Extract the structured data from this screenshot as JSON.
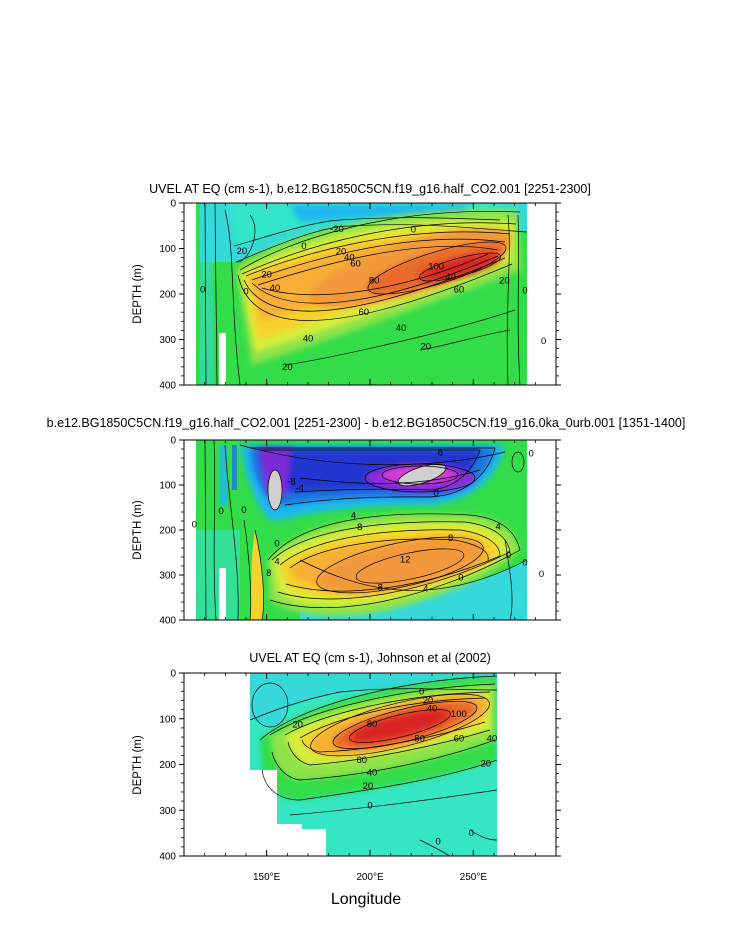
{
  "chart_data": [
    {
      "type": "contour",
      "title": "UVEL AT EQ (cm s-1), b.e12.BG1850C5CN.f19_g16.half_CO2.001 [2251-2300]",
      "ylabel": "DEPTH (m)",
      "yticks": [
        "0",
        "100",
        "200",
        "300",
        "400"
      ],
      "ylim": [
        400,
        0
      ],
      "xlim": [
        110,
        290
      ],
      "core": {
        "lon": 227,
        "depth": 140,
        "max": 100
      },
      "contour_labels": [
        {
          "text": "-20",
          "lon": 184,
          "depth": 57
        },
        {
          "text": "0",
          "lon": 168,
          "depth": 95
        },
        {
          "text": "20",
          "lon": 138,
          "depth": 105
        },
        {
          "text": "20",
          "lon": 186,
          "depth": 107
        },
        {
          "text": "40",
          "lon": 190,
          "depth": 120
        },
        {
          "text": "60",
          "lon": 193,
          "depth": 133
        },
        {
          "text": "80",
          "lon": 202,
          "depth": 170
        },
        {
          "text": "100",
          "lon": 232,
          "depth": 140
        },
        {
          "text": "20",
          "lon": 150,
          "depth": 157
        },
        {
          "text": "40",
          "lon": 154,
          "depth": 187
        },
        {
          "text": "60",
          "lon": 197,
          "depth": 240
        },
        {
          "text": "40",
          "lon": 215,
          "depth": 275
        },
        {
          "text": "40",
          "lon": 170,
          "depth": 298
        },
        {
          "text": "20",
          "lon": 227,
          "depth": 315
        },
        {
          "text": "20",
          "lon": 160,
          "depth": 360
        },
        {
          "text": "40",
          "lon": 239,
          "depth": 163
        },
        {
          "text": "60",
          "lon": 243,
          "depth": 190
        },
        {
          "text": "20",
          "lon": 265,
          "depth": 170
        },
        {
          "text": "0",
          "lon": 221,
          "depth": 58
        },
        {
          "text": "0",
          "lon": 119,
          "depth": 190
        },
        {
          "text": "0",
          "lon": 140,
          "depth": 195
        },
        {
          "text": "0",
          "lon": 275,
          "depth": 192
        },
        {
          "text": "0",
          "lon": 284,
          "depth": 303
        }
      ]
    },
    {
      "type": "contour",
      "title": "b.e12.BG1850C5CN.f19_g16.half_CO2.001 [2251-2300] - b.e12.BG1850C5CN.f19_g16.0ka_0urb.001 [1351-1400]",
      "ylabel": "DEPTH (m)",
      "yticks": [
        "0",
        "100",
        "200",
        "300",
        "400"
      ],
      "ylim": [
        400,
        0
      ],
      "xlim": [
        110,
        290
      ],
      "contour_labels": [
        {
          "text": "8",
          "lon": 234,
          "depth": 28
        },
        {
          "text": "-4",
          "lon": 166,
          "depth": 107
        },
        {
          "text": "-8",
          "lon": 162,
          "depth": 92
        },
        {
          "text": "4",
          "lon": 192,
          "depth": 168
        },
        {
          "text": "8",
          "lon": 195,
          "depth": 193
        },
        {
          "text": "8",
          "lon": 239,
          "depth": 218
        },
        {
          "text": "12",
          "lon": 217,
          "depth": 265
        },
        {
          "text": "8",
          "lon": 205,
          "depth": 328
        },
        {
          "text": "4",
          "lon": 227,
          "depth": 330
        },
        {
          "text": "0",
          "lon": 244,
          "depth": 305
        },
        {
          "text": "4",
          "lon": 262,
          "depth": 192
        },
        {
          "text": "4",
          "lon": 155,
          "depth": 270
        },
        {
          "text": "8",
          "lon": 151,
          "depth": 295
        },
        {
          "text": "0",
          "lon": 155,
          "depth": 230
        },
        {
          "text": "0",
          "lon": 115,
          "depth": 188
        },
        {
          "text": "0",
          "lon": 128,
          "depth": 158
        },
        {
          "text": "0",
          "lon": 139,
          "depth": 155
        },
        {
          "text": "0",
          "lon": 232,
          "depth": 118
        },
        {
          "text": "0",
          "lon": 267,
          "depth": 255
        },
        {
          "text": "0",
          "lon": 275,
          "depth": 272
        },
        {
          "text": "0",
          "lon": 283,
          "depth": 298
        },
        {
          "text": "0",
          "lon": 278,
          "depth": 30
        }
      ]
    },
    {
      "type": "contour",
      "title": "UVEL AT EQ (cm s-1), Johnson et al (2002)",
      "ylabel": "DEPTH (m)",
      "yticks": [
        "0",
        "100",
        "200",
        "300",
        "400"
      ],
      "ylim": [
        400,
        0
      ],
      "xlim": [
        110,
        290
      ],
      "xticks": [
        "150°E",
        "200°E",
        "250°E"
      ],
      "core": {
        "lon": 218,
        "depth": 125,
        "max": 100
      },
      "contour_labels": [
        {
          "text": "0",
          "lon": 225,
          "depth": 40
        },
        {
          "text": "20",
          "lon": 228,
          "depth": 60
        },
        {
          "text": "40",
          "lon": 230,
          "depth": 78
        },
        {
          "text": "100",
          "lon": 243,
          "depth": 90
        },
        {
          "text": "80",
          "lon": 201,
          "depth": 112
        },
        {
          "text": "80",
          "lon": 224,
          "depth": 143
        },
        {
          "text": "60",
          "lon": 243,
          "depth": 143
        },
        {
          "text": "40",
          "lon": 259,
          "depth": 143
        },
        {
          "text": "60",
          "lon": 196,
          "depth": 190
        },
        {
          "text": "40",
          "lon": 201,
          "depth": 217
        },
        {
          "text": "20",
          "lon": 199,
          "depth": 247
        },
        {
          "text": "20",
          "lon": 165,
          "depth": 113
        },
        {
          "text": "20",
          "lon": 256,
          "depth": 198
        },
        {
          "text": "0",
          "lon": 200,
          "depth": 290
        },
        {
          "text": "0",
          "lon": 233,
          "depth": 368
        },
        {
          "text": "0",
          "lon": 249,
          "depth": 350
        }
      ]
    }
  ],
  "xlabel": "Longitude"
}
